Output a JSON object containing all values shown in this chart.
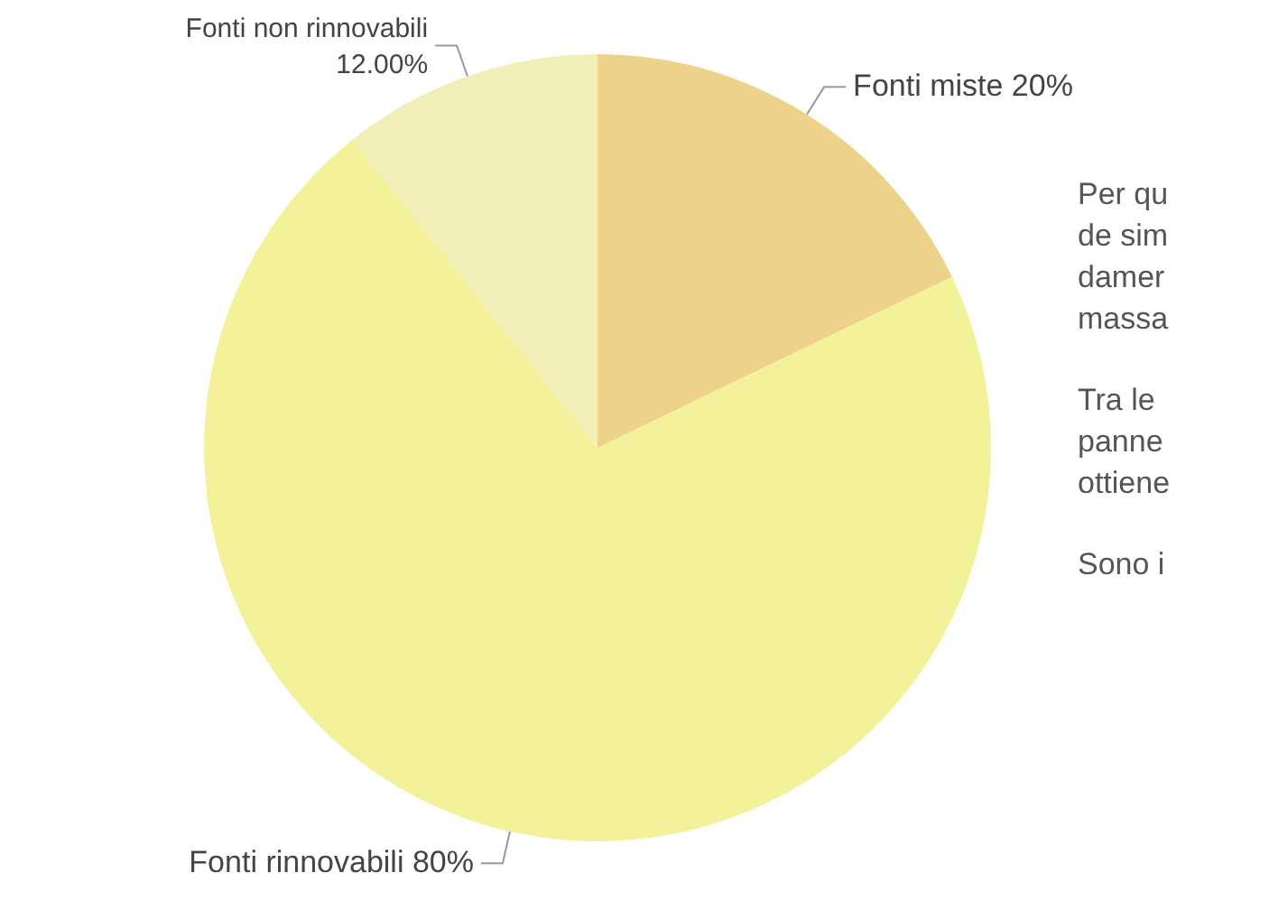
{
  "chart_data": {
    "type": "pie",
    "categories": [
      "Fonti miste",
      "Fonti rinnovabili",
      "Fonti non rinnovabili"
    ],
    "values": [
      20,
      80,
      12
    ],
    "value_labels": [
      "20%",
      "80%",
      "12.00%"
    ],
    "colors": [
      "#edd28a",
      "#f3f29a",
      "#f2eeb8"
    ],
    "legend": false,
    "annotations": [
      "Per qu",
      "de sim",
      "damer",
      "massa",
      "Tra le",
      "panne",
      "ottiene",
      "Sono i"
    ]
  }
}
